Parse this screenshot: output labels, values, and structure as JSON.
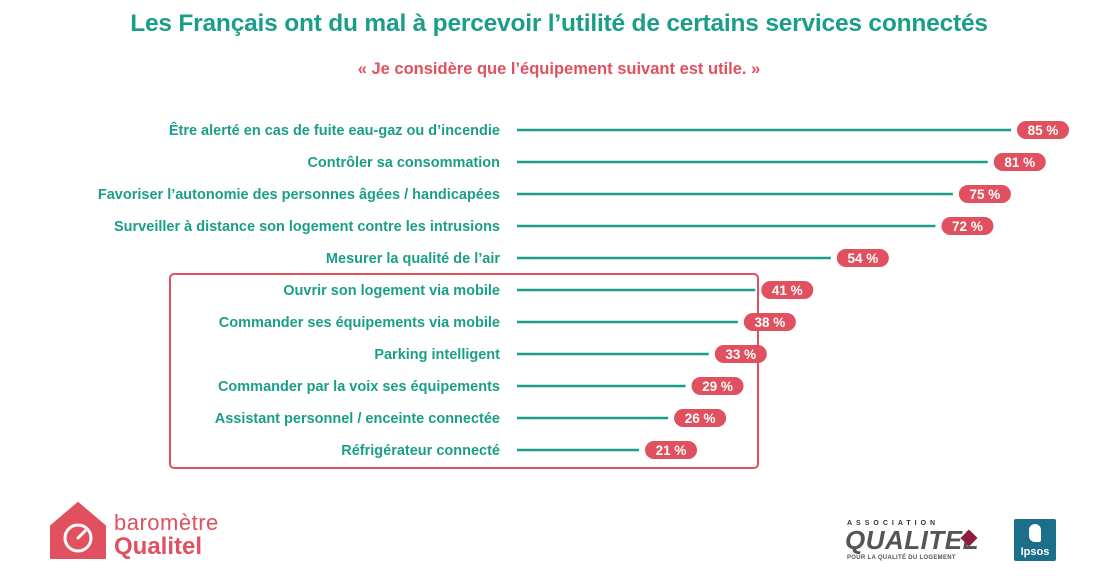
{
  "title": "Les Français ont du mal à percevoir l’utilité de certains services connectés",
  "subtitle": "« Je considère que l’équipement suivant est utile. »",
  "colors": {
    "bar": "#1a9e8a",
    "label_bg": "#e0505e",
    "title": "#1a9e8a",
    "accent": "#e0505e",
    "highlight_box": "#e0505e"
  },
  "chart_data": {
    "type": "bar",
    "orientation": "horizontal",
    "categories": [
      "Être alerté en cas de fuite eau-gaz ou d’incendie",
      "Contrôler sa consommation",
      "Favoriser l’autonomie des personnes âgées / handicapées",
      "Surveiller à distance son logement contre les intrusions",
      "Mesurer la qualité de l’air",
      "Ouvrir son logement via mobile",
      "Commander ses équipements via mobile",
      "Parking intelligent",
      "Commander par la voix ses équipements",
      "Assistant personnel / enceinte connectée",
      "Réfrigérateur connecté"
    ],
    "values": [
      85,
      81,
      75,
      72,
      54,
      41,
      38,
      33,
      29,
      26,
      21
    ],
    "value_labels": [
      "85 %",
      "81 %",
      "75 %",
      "72 %",
      "54 %",
      "41 %",
      "38 %",
      "33 %",
      "29 %",
      "26 %",
      "21 %"
    ],
    "highlighted_range": [
      5,
      10
    ],
    "xlim": [
      0,
      85
    ]
  },
  "branding": {
    "barometer_line1": "baromètre",
    "barometer_line2": "Qualitel",
    "association_top": "ASSOCIATION",
    "association_name": "QUALITEL",
    "association_tagline": "POUR LA QUALITÉ DU LOGEMENT",
    "partner": "Ipsos"
  }
}
